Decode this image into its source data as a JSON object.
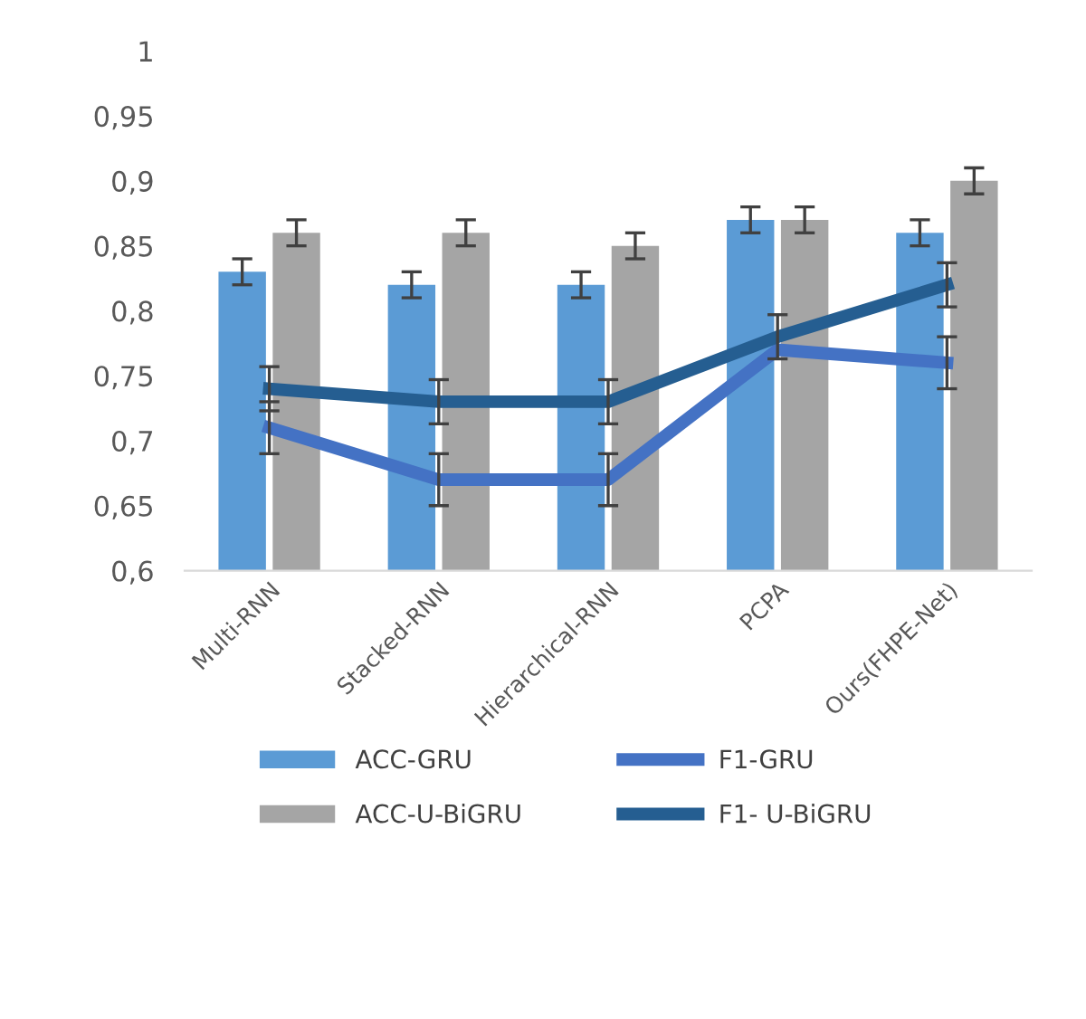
{
  "chart_data": {
    "type": "bar",
    "categories": [
      "Multi-RNN",
      "Stacked-RNN",
      "Hierarchical-RNN",
      "PCPA",
      "Ours(FHPE-Net)"
    ],
    "series": [
      {
        "name": "ACC-GRU",
        "color": "#5b9bd5",
        "values": [
          0.83,
          0.82,
          0.82,
          0.87,
          0.86
        ],
        "errors": [
          0.01,
          0.01,
          0.01,
          0.01,
          0.01
        ]
      },
      {
        "name": "ACC-U-BiGRU",
        "color": "#a5a5a5",
        "values": [
          0.86,
          0.86,
          0.85,
          0.87,
          0.9
        ],
        "errors": [
          0.01,
          0.01,
          0.01,
          0.01,
          0.01
        ]
      },
      {
        "name": "F1-GRU",
        "type": "line",
        "color": "#4472c4",
        "values": [
          0.71,
          0.67,
          0.67,
          0.77,
          0.76
        ],
        "errors": [
          0.02,
          0.02,
          0.02,
          null,
          0.02
        ]
      },
      {
        "name": "F1- U-BiGRU",
        "type": "line",
        "color": "#255e91",
        "values": [
          0.74,
          0.73,
          0.73,
          0.78,
          0.82
        ],
        "errors": [
          0.017,
          0.017,
          0.017,
          0.017,
          0.017
        ]
      }
    ],
    "ylim": [
      0.6,
      1
    ],
    "yticks": [
      {
        "value": 0.6,
        "label": "0,6"
      },
      {
        "value": 0.65,
        "label": "0,65"
      },
      {
        "value": 0.7,
        "label": "0,7"
      },
      {
        "value": 0.75,
        "label": "0,75"
      },
      {
        "value": 0.8,
        "label": "0,8"
      },
      {
        "value": 0.85,
        "label": "0,85"
      },
      {
        "value": 0.9,
        "label": "0,9"
      },
      {
        "value": 0.95,
        "label": "0,95"
      },
      {
        "value": 1,
        "label": "1"
      }
    ],
    "grid": false,
    "legend": "bottom",
    "marker": "none",
    "line_style": "solid"
  }
}
